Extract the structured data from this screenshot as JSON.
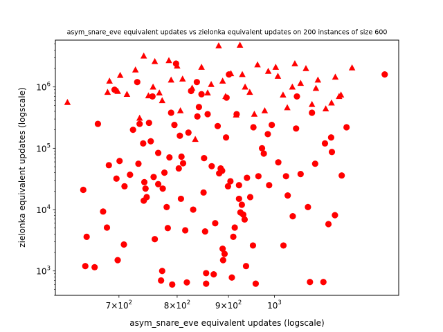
{
  "chart_data": {
    "type": "scatter",
    "title": "asym_snare_eve equivalent updates vs zielonka equivalent updates on 200 instances of size 600",
    "xlabel": "asym_snare_eve equivalent updates (logscale)",
    "ylabel": "zielonka equivalent updates (logscale)",
    "xscale": "log",
    "yscale": "log",
    "xlim": [
      605,
      1330
    ],
    "ylim": [
      400,
      5800000
    ],
    "grid": false,
    "legend": "none",
    "x_ticks": [
      {
        "value": 700,
        "mantissa": "7",
        "base": "10",
        "exp": "2"
      },
      {
        "value": 800,
        "mantissa": "8",
        "base": "10",
        "exp": "2"
      },
      {
        "value": 900,
        "mantissa": "9",
        "base": "10",
        "exp": "2"
      },
      {
        "value": 1000,
        "mantissa": "",
        "base": "10",
        "exp": "3"
      }
    ],
    "y_ticks": [
      {
        "value": 1000,
        "base": "10",
        "exp": "3"
      },
      {
        "value": 10000,
        "base": "10",
        "exp": "4"
      },
      {
        "value": 100000,
        "base": "10",
        "exp": "5"
      },
      {
        "value": 1000000,
        "base": "10",
        "exp": "6"
      }
    ],
    "colors": {
      "points": "#ff0000",
      "axes": "#000000"
    },
    "series": [
      {
        "marker": "triangle",
        "points": [
          [
            622,
            560000
          ],
          [
            682,
            820000
          ],
          [
            685,
            1250000
          ],
          [
            698,
            850000
          ],
          [
            702,
            1550000
          ],
          [
            713,
            760000
          ],
          [
            727,
            1900000
          ],
          [
            734,
            310000
          ],
          [
            741,
            3200000
          ],
          [
            749,
            720000
          ],
          [
            757,
            1000000
          ],
          [
            760,
            2600000
          ],
          [
            768,
            800000
          ],
          [
            773,
            600000
          ],
          [
            785,
            2700000
          ],
          [
            789,
            1300000
          ],
          [
            800,
            2200000
          ],
          [
            806,
            410000
          ],
          [
            810,
            1350000
          ],
          [
            828,
            960000
          ],
          [
            834,
            140000
          ],
          [
            846,
            2100000
          ],
          [
            858,
            800000
          ],
          [
            865,
            1100000
          ],
          [
            880,
            4700000
          ],
          [
            888,
            1250000
          ],
          [
            894,
            700000
          ],
          [
            905,
            1650000
          ],
          [
            916,
            350000
          ],
          [
            924,
            4800000
          ],
          [
            929,
            1600000
          ],
          [
            935,
            1000000
          ],
          [
            945,
            820000
          ],
          [
            955,
            360000
          ],
          [
            962,
            2300000
          ],
          [
            978,
            410000
          ],
          [
            986,
            1800000
          ],
          [
            1003,
            2100000
          ],
          [
            1008,
            1500000
          ],
          [
            1020,
            740000
          ],
          [
            1030,
            460000
          ],
          [
            1042,
            1000000
          ],
          [
            1048,
            2400000
          ],
          [
            1062,
            1150000
          ],
          [
            1075,
            2000000
          ],
          [
            1090,
            520000
          ],
          [
            1100,
            950000
          ],
          [
            1105,
            1300000
          ],
          [
            1125,
            440000
          ],
          [
            1140,
            550000
          ],
          [
            1150,
            1450000
          ],
          [
            1160,
            700000
          ],
          [
            1165,
            740000
          ],
          [
            1195,
            2050000
          ]
        ]
      },
      {
        "marker": "circle",
        "points": [
          [
            645,
            21000
          ],
          [
            648,
            1200
          ],
          [
            650,
            3600
          ],
          [
            662,
            1150
          ],
          [
            667,
            250000
          ],
          [
            675,
            9300
          ],
          [
            681,
            5100
          ],
          [
            684,
            53000
          ],
          [
            693,
            900000
          ],
          [
            696,
            32000
          ],
          [
            698,
            1500
          ],
          [
            701,
            62000
          ],
          [
            708,
            2700
          ],
          [
            709,
            24000
          ],
          [
            718,
            37000
          ],
          [
            723,
            200000
          ],
          [
            730,
            1200000
          ],
          [
            732,
            56000
          ],
          [
            734,
            250000
          ],
          [
            740,
            120000
          ],
          [
            741,
            14000
          ],
          [
            742,
            28000
          ],
          [
            744,
            22000
          ],
          [
            746,
            16000
          ],
          [
            750,
            260000
          ],
          [
            753,
            130000
          ],
          [
            756,
            700000
          ],
          [
            758,
            34000
          ],
          [
            760,
            3300
          ],
          [
            766,
            26000
          ],
          [
            766,
            84000
          ],
          [
            771,
            700
          ],
          [
            773,
            1000
          ],
          [
            774,
            22000
          ],
          [
            777,
            40000
          ],
          [
            781,
            11000
          ],
          [
            783,
            5000
          ],
          [
            786,
            71000
          ],
          [
            789,
            380000
          ],
          [
            791,
            600
          ],
          [
            795,
            240000
          ],
          [
            798,
            2400000
          ],
          [
            803,
            47000
          ],
          [
            805,
            160000
          ],
          [
            807,
            15000
          ],
          [
            808,
            73000
          ],
          [
            811,
            57000
          ],
          [
            815,
            4600
          ],
          [
            818,
            650
          ],
          [
            821,
            180000
          ],
          [
            826,
            860000
          ],
          [
            830,
            10000
          ],
          [
            837,
            1200000
          ],
          [
            838,
            330000
          ],
          [
            841,
            470000
          ],
          [
            846,
            760000
          ],
          [
            850,
            19000
          ],
          [
            851,
            69000
          ],
          [
            853,
            4400
          ],
          [
            855,
            620
          ],
          [
            855,
            920
          ],
          [
            858,
            360000
          ],
          [
            866,
            51000
          ],
          [
            870,
            880
          ],
          [
            873,
            6000
          ],
          [
            878,
            230000
          ],
          [
            881,
            39000
          ],
          [
            884,
            47000
          ],
          [
            887,
            43000
          ],
          [
            888,
            2300
          ],
          [
            889,
            1500
          ],
          [
            892,
            1900
          ],
          [
            895,
            150000
          ],
          [
            896,
            670000
          ],
          [
            899,
            24000
          ],
          [
            901,
            1600000
          ],
          [
            904,
            29000
          ],
          [
            907,
            780
          ],
          [
            910,
            3600
          ],
          [
            913,
            5100
          ],
          [
            917,
            360000
          ],
          [
            922,
            15000
          ],
          [
            922,
            25000
          ],
          [
            925,
            9000
          ],
          [
            928,
            12000
          ],
          [
            931,
            8300
          ],
          [
            934,
            6900
          ],
          [
            937,
            1200
          ],
          [
            939,
            33000
          ],
          [
            946,
            16000
          ],
          [
            952,
            2600
          ],
          [
            953,
            220000
          ],
          [
            958,
            620
          ],
          [
            964,
            35000
          ],
          [
            972,
            100000
          ],
          [
            976,
            82000
          ],
          [
            985,
            170000
          ],
          [
            988,
            25000
          ],
          [
            994,
            240000
          ],
          [
            1009,
            59000
          ],
          [
            1021,
            2600
          ],
          [
            1027,
            35000
          ],
          [
            1031,
            17000
          ],
          [
            1043,
            7800
          ],
          [
            1051,
            210000
          ],
          [
            1053,
            700000
          ],
          [
            1062,
            38000
          ],
          [
            1080,
            11000
          ],
          [
            1085,
            660
          ],
          [
            1090,
            380000
          ],
          [
            1098,
            56000
          ],
          [
            1119,
            660
          ],
          [
            1123,
            120000
          ],
          [
            1132,
            5800
          ],
          [
            1139,
            150000
          ],
          [
            1141,
            87000
          ],
          [
            1149,
            8100
          ],
          [
            1167,
            36000
          ],
          [
            1180,
            220000
          ],
          [
            1288,
            1600000
          ]
        ]
      }
    ]
  }
}
